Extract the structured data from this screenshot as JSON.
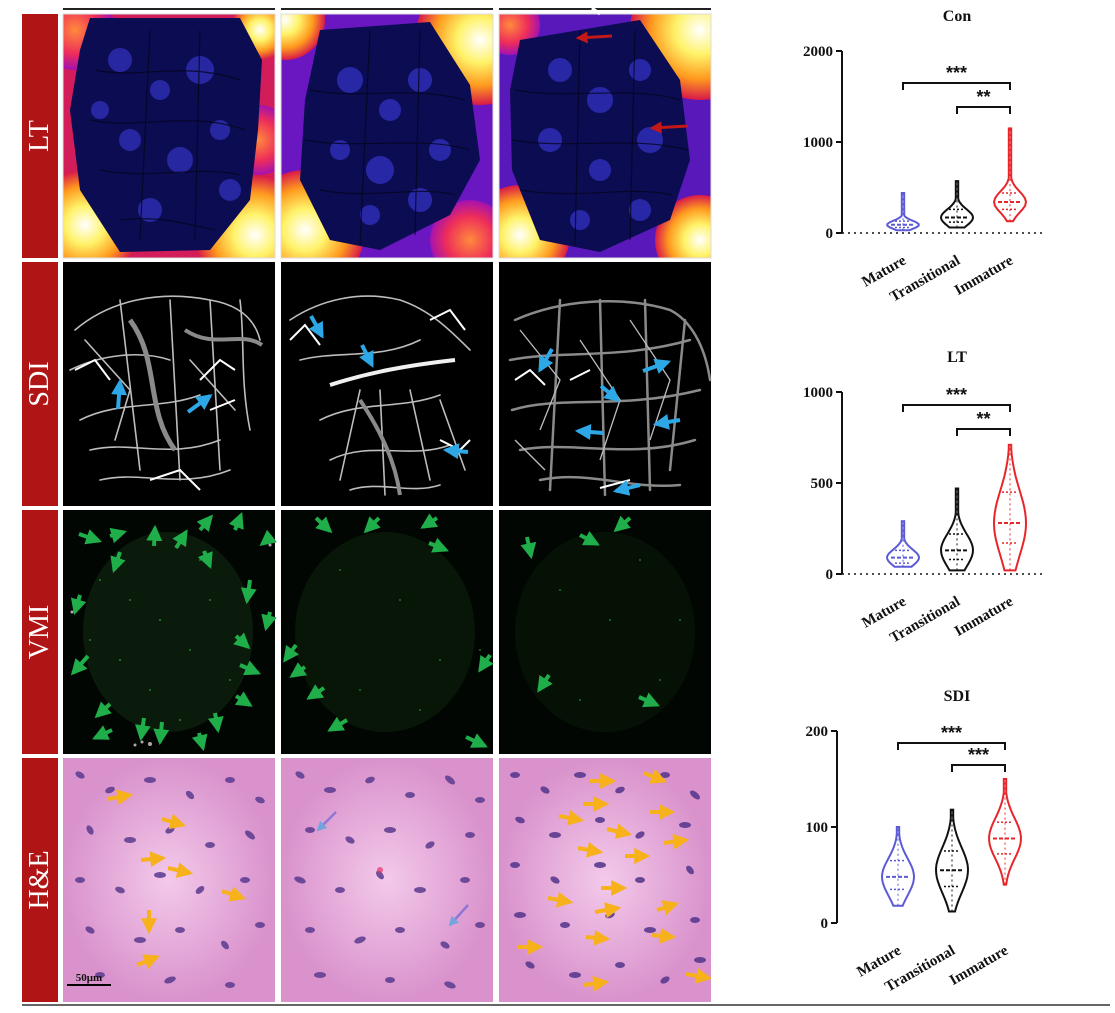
{
  "figure": {
    "row_labels": [
      "LT",
      "SDI",
      "VMI",
      "H&E"
    ],
    "scale_bar_label": "50μm"
  },
  "chart_data": [
    {
      "type": "violin",
      "title": "Con",
      "categories": [
        "Mature",
        "Transitional",
        "Immature"
      ],
      "ylim": [
        0,
        2000
      ],
      "yticks": [
        0,
        1000,
        2000
      ],
      "reference_line": 0,
      "series": [
        {
          "category": "Mature",
          "color": "#5b5bd6",
          "min": 30,
          "q1": 60,
          "median": 90,
          "q3": 130,
          "max": 440
        },
        {
          "category": "Transitional",
          "color": "#111111",
          "min": 60,
          "q1": 120,
          "median": 170,
          "q3": 260,
          "max": 570
        },
        {
          "category": "Immature",
          "color": "#e8262a",
          "min": 130,
          "q1": 260,
          "median": 340,
          "q3": 440,
          "max": 1150
        }
      ],
      "significance": [
        {
          "from": "Mature",
          "to": "Immature",
          "label": "***"
        },
        {
          "from": "Transitional",
          "to": "Immature",
          "label": "**"
        }
      ]
    },
    {
      "type": "violin",
      "title": "LT",
      "categories": [
        "Mature",
        "Transitional",
        "Immature"
      ],
      "ylim": [
        0,
        1000
      ],
      "yticks": [
        0,
        500,
        1000
      ],
      "reference_line": 0,
      "series": [
        {
          "category": "Mature",
          "color": "#5b5bd6",
          "min": 40,
          "q1": 60,
          "median": 90,
          "q3": 130,
          "max": 290
        },
        {
          "category": "Transitional",
          "color": "#111111",
          "min": 20,
          "q1": 80,
          "median": 130,
          "q3": 220,
          "max": 470
        },
        {
          "category": "Immature",
          "color": "#e8262a",
          "min": 20,
          "q1": 170,
          "median": 280,
          "q3": 450,
          "max": 710
        }
      ],
      "significance": [
        {
          "from": "Mature",
          "to": "Immature",
          "label": "***"
        },
        {
          "from": "Transitional",
          "to": "Immature",
          "label": "**"
        }
      ]
    },
    {
      "type": "violin",
      "title": "SDI",
      "categories": [
        "Mature",
        "Transitional",
        "Immature"
      ],
      "ylim": [
        0,
        200
      ],
      "yticks": [
        0,
        100,
        200
      ],
      "series": [
        {
          "category": "Mature",
          "color": "#5b5bd6",
          "min": 18,
          "q1": 35,
          "median": 48,
          "q3": 65,
          "max": 100
        },
        {
          "category": "Transitional",
          "color": "#111111",
          "min": 12,
          "q1": 38,
          "median": 55,
          "q3": 75,
          "max": 118
        },
        {
          "category": "Immature",
          "color": "#e8262a",
          "min": 40,
          "q1": 72,
          "median": 88,
          "q3": 105,
          "max": 150
        }
      ],
      "significance": [
        {
          "from": "Mature",
          "to": "Immature",
          "label": "***"
        },
        {
          "from": "Transitional",
          "to": "Immature",
          "label": "***"
        }
      ]
    }
  ]
}
